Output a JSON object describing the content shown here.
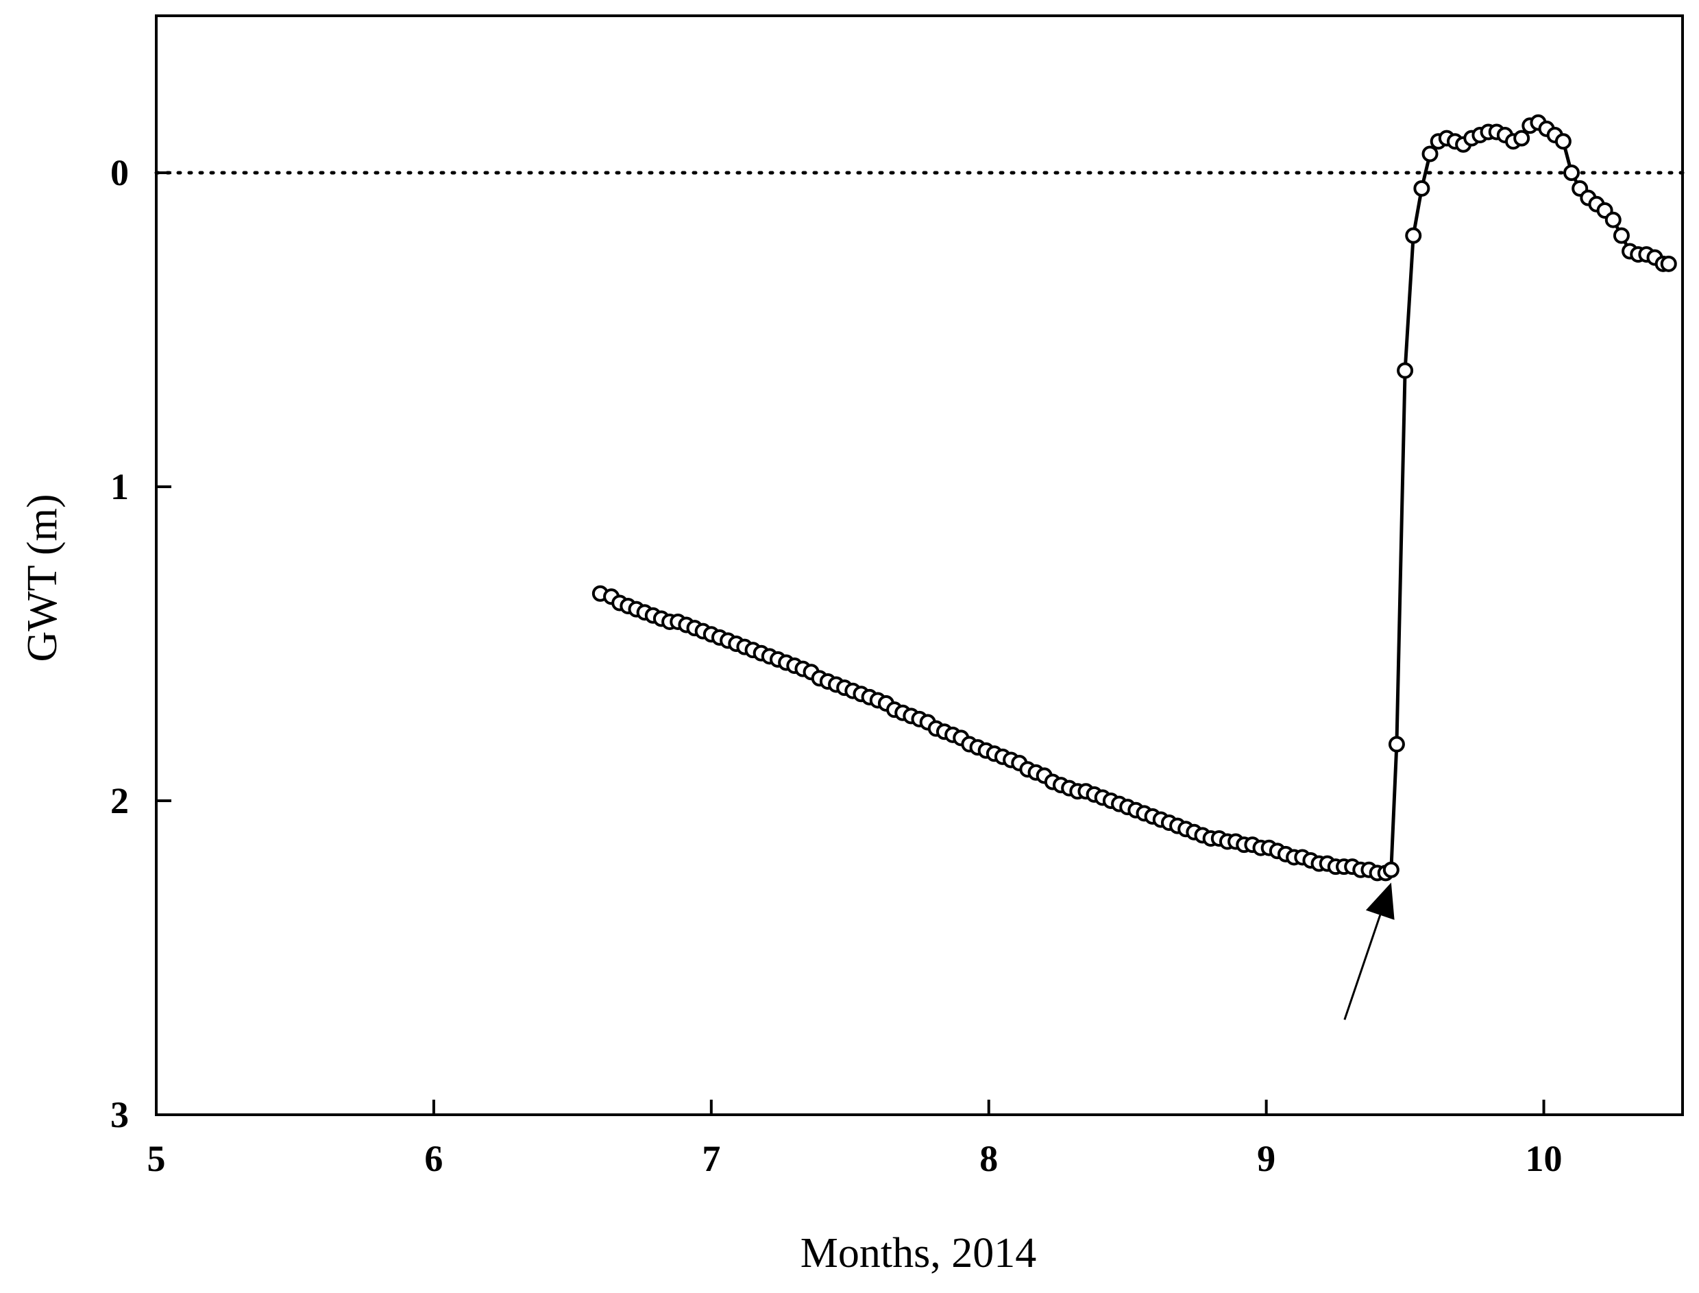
{
  "chart_data": {
    "type": "line",
    "xlabel": "Months, 2014",
    "ylabel": "GWT (m)",
    "xlim": [
      5,
      10.5
    ],
    "ylim": [
      -0.5,
      3
    ],
    "y_inverted": true,
    "x_ticks": [
      5,
      6,
      7,
      8,
      9,
      10
    ],
    "y_ticks": [
      0,
      1,
      2,
      3
    ],
    "reference_line": {
      "y": 0,
      "style": "dotted"
    },
    "marker": "open-circle",
    "grid": false,
    "annotation": {
      "type": "arrow",
      "points_to": {
        "x": 9.45,
        "y": 2.23
      }
    },
    "series": [
      {
        "x": [
          6.6,
          6.64,
          6.67,
          6.7,
          6.73,
          6.76,
          6.79,
          6.82,
          6.85,
          6.88,
          6.91,
          6.94,
          6.97,
          7.0,
          7.03,
          7.06,
          7.09,
          7.12,
          7.15,
          7.18,
          7.21,
          7.24,
          7.27,
          7.3,
          7.33,
          7.36,
          7.39,
          7.42,
          7.45,
          7.48,
          7.51,
          7.54,
          7.57,
          7.6,
          7.63,
          7.66,
          7.69,
          7.72,
          7.75,
          7.78,
          7.81,
          7.84,
          7.87,
          7.9,
          7.93,
          7.96,
          7.99,
          8.02,
          8.05,
          8.08,
          8.11,
          8.14,
          8.17,
          8.2,
          8.23,
          8.26,
          8.29,
          8.32,
          8.35,
          8.38,
          8.41,
          8.44,
          8.47,
          8.5,
          8.53,
          8.56,
          8.59,
          8.62,
          8.65,
          8.68,
          8.71,
          8.74,
          8.77,
          8.8,
          8.83,
          8.86,
          8.89,
          8.92,
          8.95,
          8.98,
          9.01,
          9.04,
          9.07,
          9.1,
          9.13,
          9.16,
          9.19,
          9.22,
          9.25,
          9.28,
          9.31,
          9.34,
          9.37,
          9.4,
          9.43,
          9.45,
          9.47,
          9.5,
          9.53,
          9.56,
          9.59,
          9.62,
          9.65,
          9.68,
          9.71,
          9.74,
          9.77,
          9.8,
          9.83,
          9.86,
          9.89,
          9.92,
          9.95,
          9.98,
          10.01,
          10.04,
          10.07,
          10.1,
          10.13,
          10.16,
          10.19,
          10.22,
          10.25,
          10.28,
          10.31,
          10.34,
          10.37,
          10.4,
          10.43,
          10.45
        ],
        "y": [
          1.34,
          1.35,
          1.37,
          1.38,
          1.39,
          1.4,
          1.41,
          1.42,
          1.43,
          1.43,
          1.44,
          1.45,
          1.46,
          1.47,
          1.48,
          1.49,
          1.5,
          1.51,
          1.52,
          1.53,
          1.54,
          1.55,
          1.56,
          1.57,
          1.58,
          1.59,
          1.61,
          1.62,
          1.63,
          1.64,
          1.65,
          1.66,
          1.67,
          1.68,
          1.69,
          1.71,
          1.72,
          1.73,
          1.74,
          1.75,
          1.77,
          1.78,
          1.79,
          1.8,
          1.82,
          1.83,
          1.84,
          1.85,
          1.86,
          1.87,
          1.88,
          1.9,
          1.91,
          1.92,
          1.94,
          1.95,
          1.96,
          1.97,
          1.97,
          1.98,
          1.99,
          2.0,
          2.01,
          2.02,
          2.03,
          2.04,
          2.05,
          2.06,
          2.07,
          2.08,
          2.09,
          2.1,
          2.11,
          2.12,
          2.12,
          2.13,
          2.13,
          2.14,
          2.14,
          2.15,
          2.15,
          2.16,
          2.17,
          2.18,
          2.18,
          2.19,
          2.2,
          2.2,
          2.21,
          2.21,
          2.21,
          2.22,
          2.22,
          2.23,
          2.23,
          2.22,
          1.82,
          0.63,
          0.2,
          0.05,
          -0.06,
          -0.1,
          -0.11,
          -0.1,
          -0.09,
          -0.11,
          -0.12,
          -0.13,
          -0.13,
          -0.12,
          -0.1,
          -0.11,
          -0.15,
          -0.16,
          -0.14,
          -0.12,
          -0.1,
          0.0,
          0.05,
          0.08,
          0.1,
          0.12,
          0.15,
          0.2,
          0.25,
          0.26,
          0.26,
          0.27,
          0.29,
          0.29
        ]
      }
    ]
  }
}
